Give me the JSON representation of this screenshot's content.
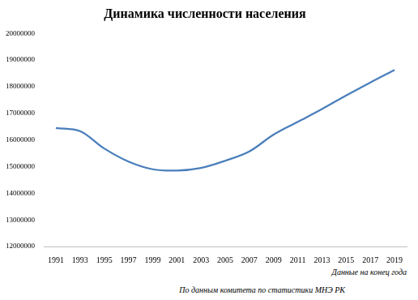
{
  "chart_data": {
    "type": "line",
    "title": "Динамика численности населения",
    "categories": [
      "1991",
      "1993",
      "1995",
      "1997",
      "1999",
      "2001",
      "2003",
      "2005",
      "2007",
      "2009",
      "2011",
      "2013",
      "2015",
      "2017",
      "2019"
    ],
    "values": [
      16450000,
      16330000,
      15680000,
      15190000,
      14900000,
      14850000,
      14950000,
      15220000,
      15570000,
      16200000,
      16680000,
      17160000,
      17670000,
      18160000,
      18630000
    ],
    "color": "#4a7ebb",
    "ylim": [
      12000000,
      20000000
    ],
    "yticks": [
      12000000,
      13000000,
      14000000,
      15000000,
      16000000,
      17000000,
      18000000,
      19000000,
      20000000
    ],
    "grid": false,
    "annotations": [
      "Данные на конец года",
      "По данным комитета по статистики МНЭ РК"
    ]
  }
}
